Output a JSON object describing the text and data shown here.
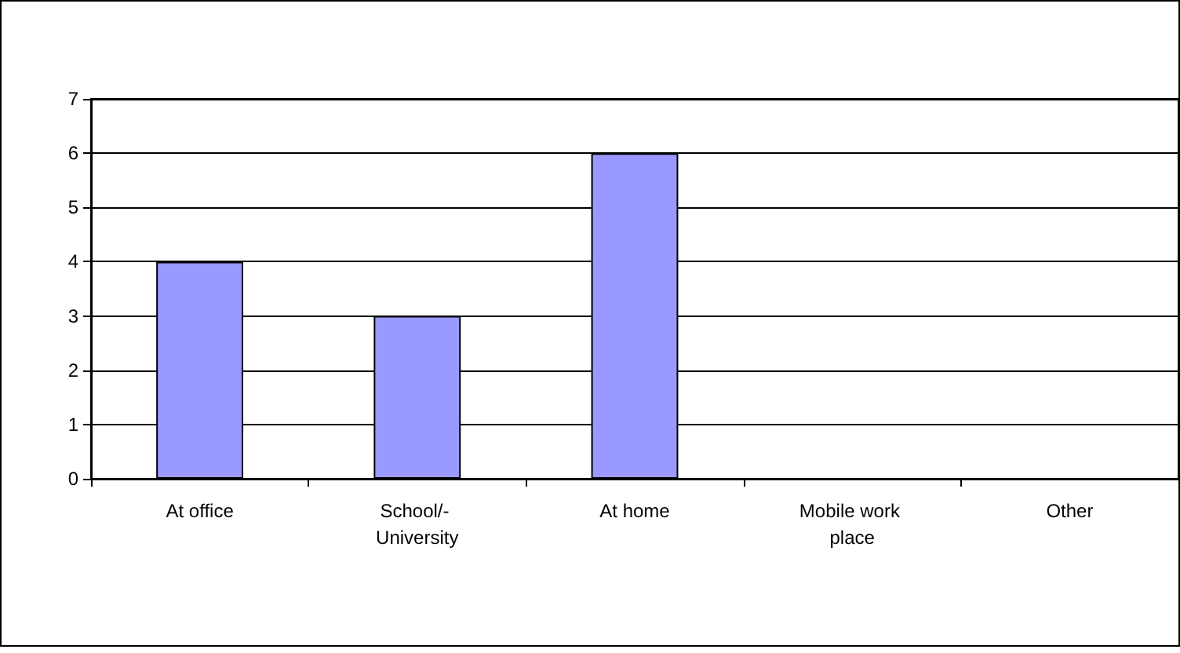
{
  "chart_data": {
    "type": "bar",
    "categories": [
      "At office",
      "School/- University",
      "At home",
      "Mobile work place",
      "Other"
    ],
    "values": [
      4,
      3,
      6,
      0,
      0
    ],
    "color": "#9999ff",
    "ylim": [
      0,
      7
    ],
    "yticks": [
      0,
      1,
      2,
      3,
      4,
      5,
      6,
      7
    ],
    "grid": "y"
  }
}
